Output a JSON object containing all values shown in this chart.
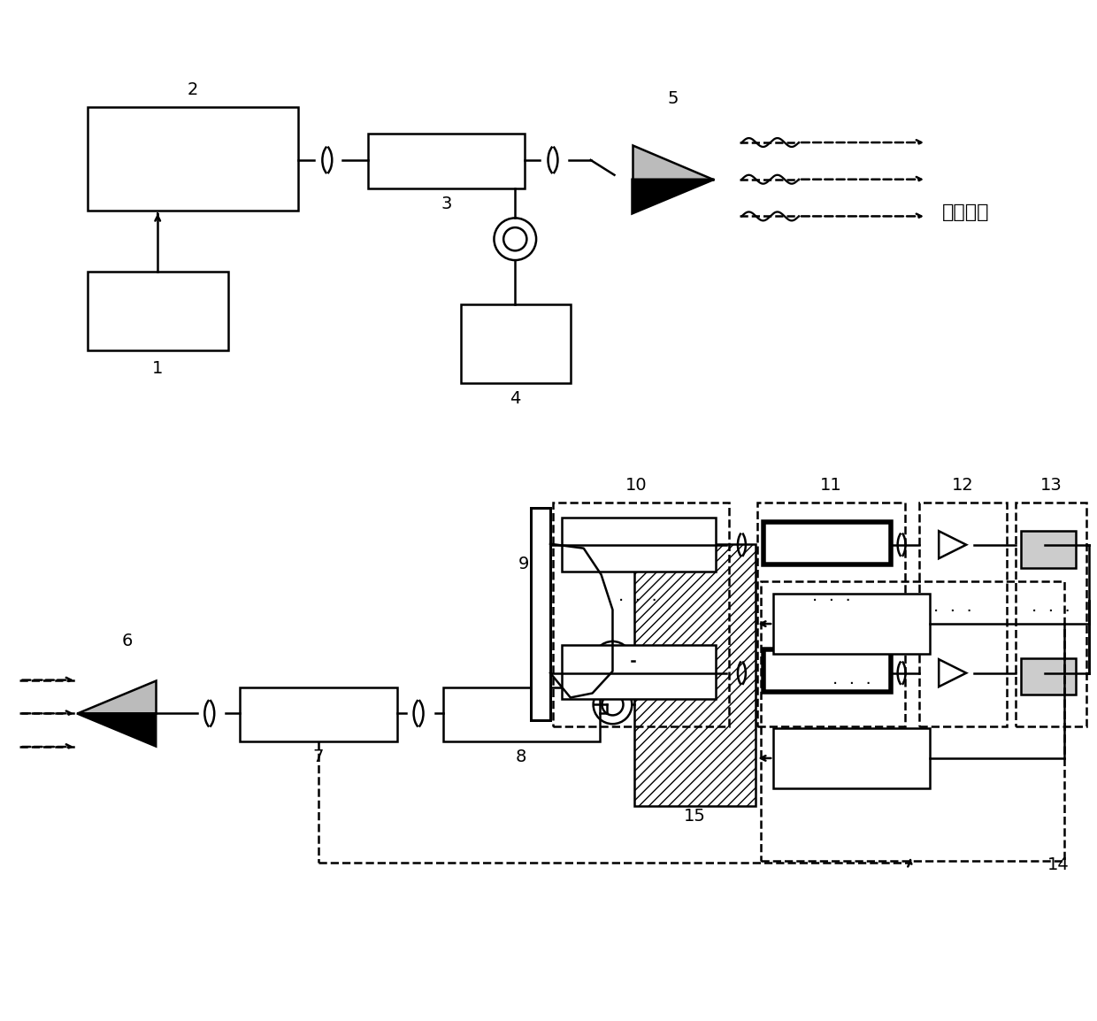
{
  "bg_color": "#ffffff",
  "lc": "#000000",
  "lw": 1.8,
  "fs": 14,
  "chinese_label": "被测大气"
}
